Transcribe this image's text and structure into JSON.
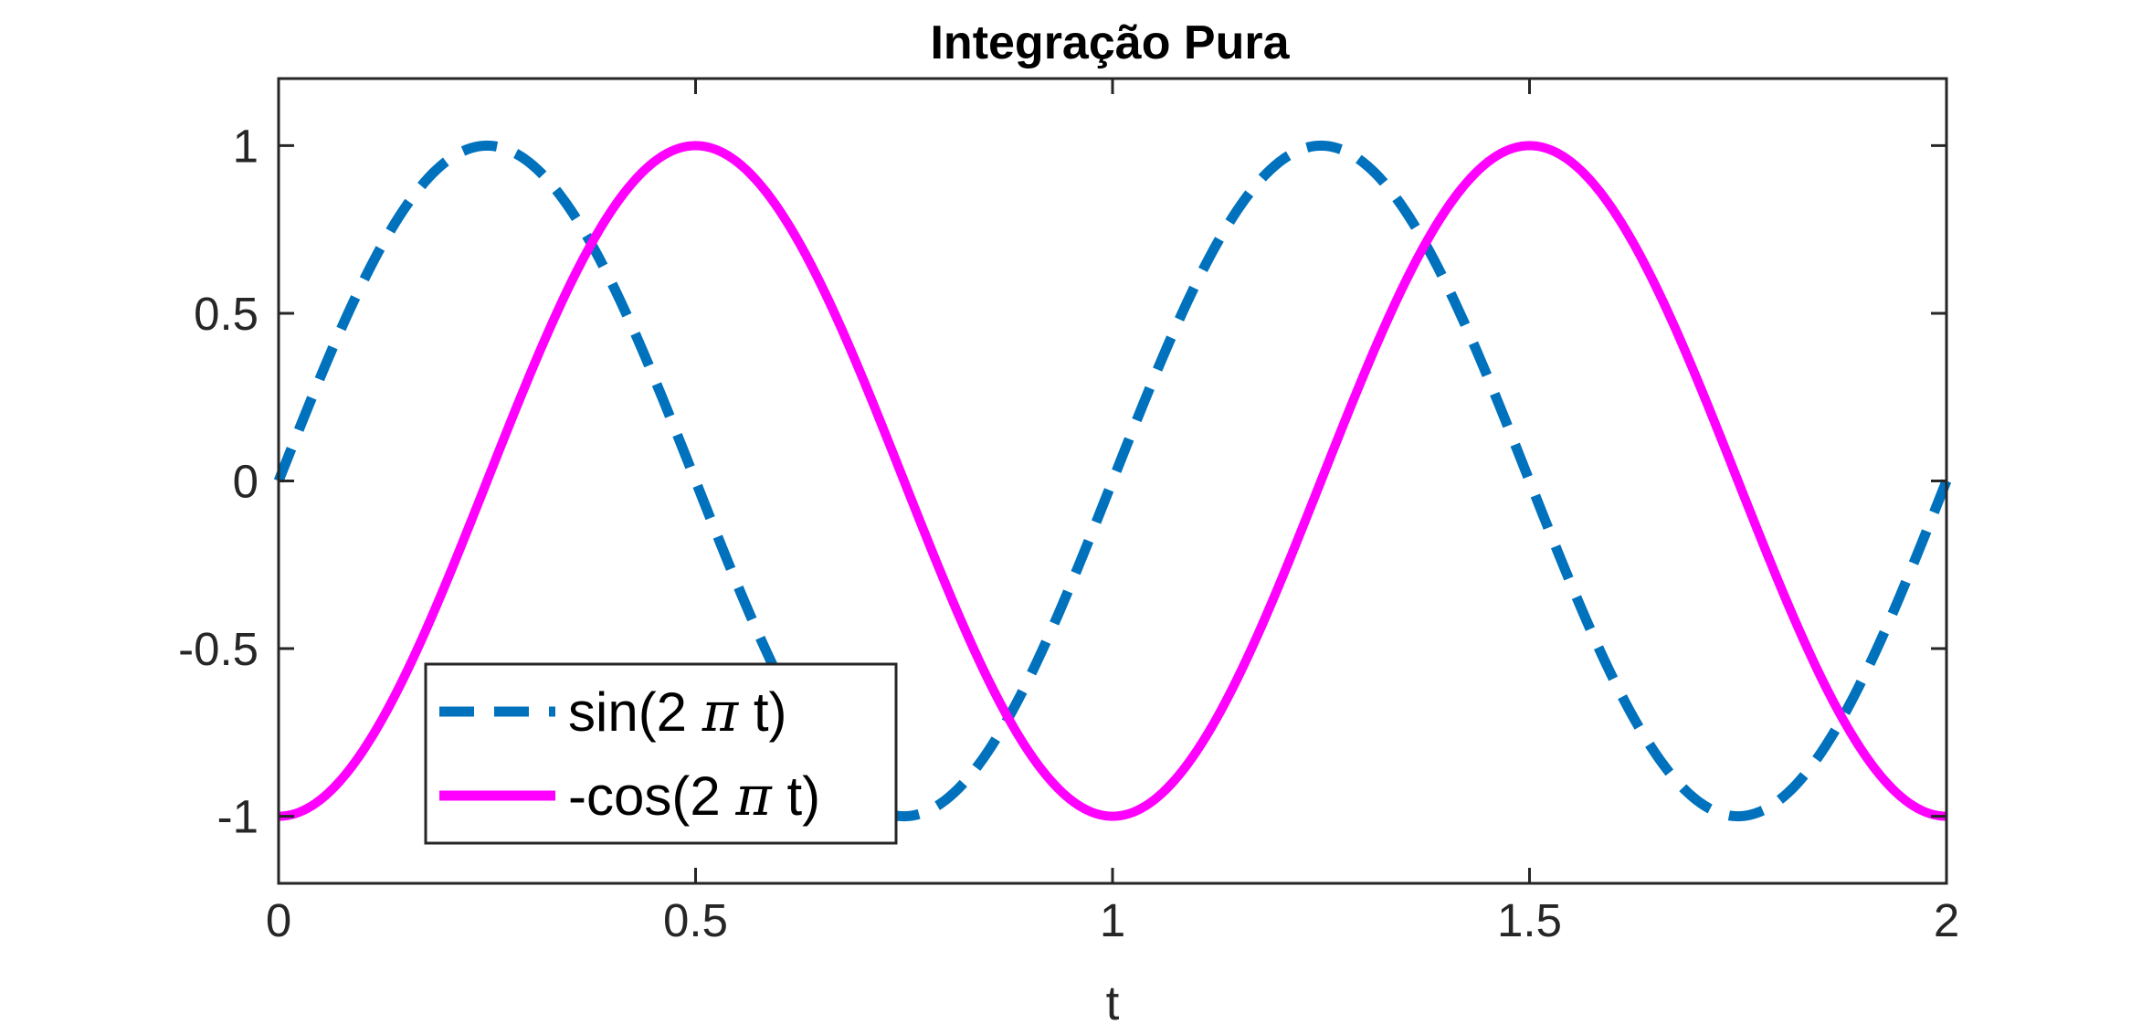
{
  "chart_data": {
    "type": "line",
    "title": "Integração Pura",
    "xlabel": "t",
    "ylabel": "",
    "xlim": [
      0,
      2
    ],
    "ylim": [
      -1.2,
      1.2
    ],
    "xticks": [
      0,
      0.5,
      1,
      1.5,
      2
    ],
    "xtick_labels": [
      "0",
      "0.5",
      "1",
      "1.5",
      "2"
    ],
    "yticks": [
      -1,
      -0.5,
      0,
      0.5,
      1
    ],
    "ytick_labels": [
      "-1",
      "-0.5",
      "0",
      "0.5",
      "1"
    ],
    "grid": false,
    "legend_position": "bottom-left",
    "series": [
      {
        "name": "sin(2 π t)",
        "legend_prefix": "sin(2 ",
        "legend_symbol": "π",
        "legend_suffix": " t)",
        "function": "sin",
        "style": "dashed",
        "color": "#0072BD",
        "x": [
          0,
          0.125,
          0.25,
          0.375,
          0.5,
          0.625,
          0.75,
          0.875,
          1,
          1.125,
          1.25,
          1.375,
          1.5,
          1.625,
          1.75,
          1.875,
          2
        ],
        "values": [
          0,
          0.707,
          1,
          0.707,
          0,
          -0.707,
          -1,
          -0.707,
          0,
          0.707,
          1,
          0.707,
          0,
          -0.707,
          -1,
          -0.707,
          0
        ]
      },
      {
        "name": "-cos(2 π t)",
        "legend_prefix": "-cos(2 ",
        "legend_symbol": "π",
        "legend_suffix": " t)",
        "function": "-cos",
        "style": "solid",
        "color": "#FF00FF",
        "x": [
          0,
          0.125,
          0.25,
          0.375,
          0.5,
          0.625,
          0.75,
          0.875,
          1,
          1.125,
          1.25,
          1.375,
          1.5,
          1.625,
          1.75,
          1.875,
          2
        ],
        "values": [
          -1,
          -0.707,
          0,
          0.707,
          1,
          0.707,
          0,
          -0.707,
          -1,
          -0.707,
          0,
          0.707,
          1,
          0.707,
          0,
          -0.707,
          -1
        ]
      }
    ]
  }
}
